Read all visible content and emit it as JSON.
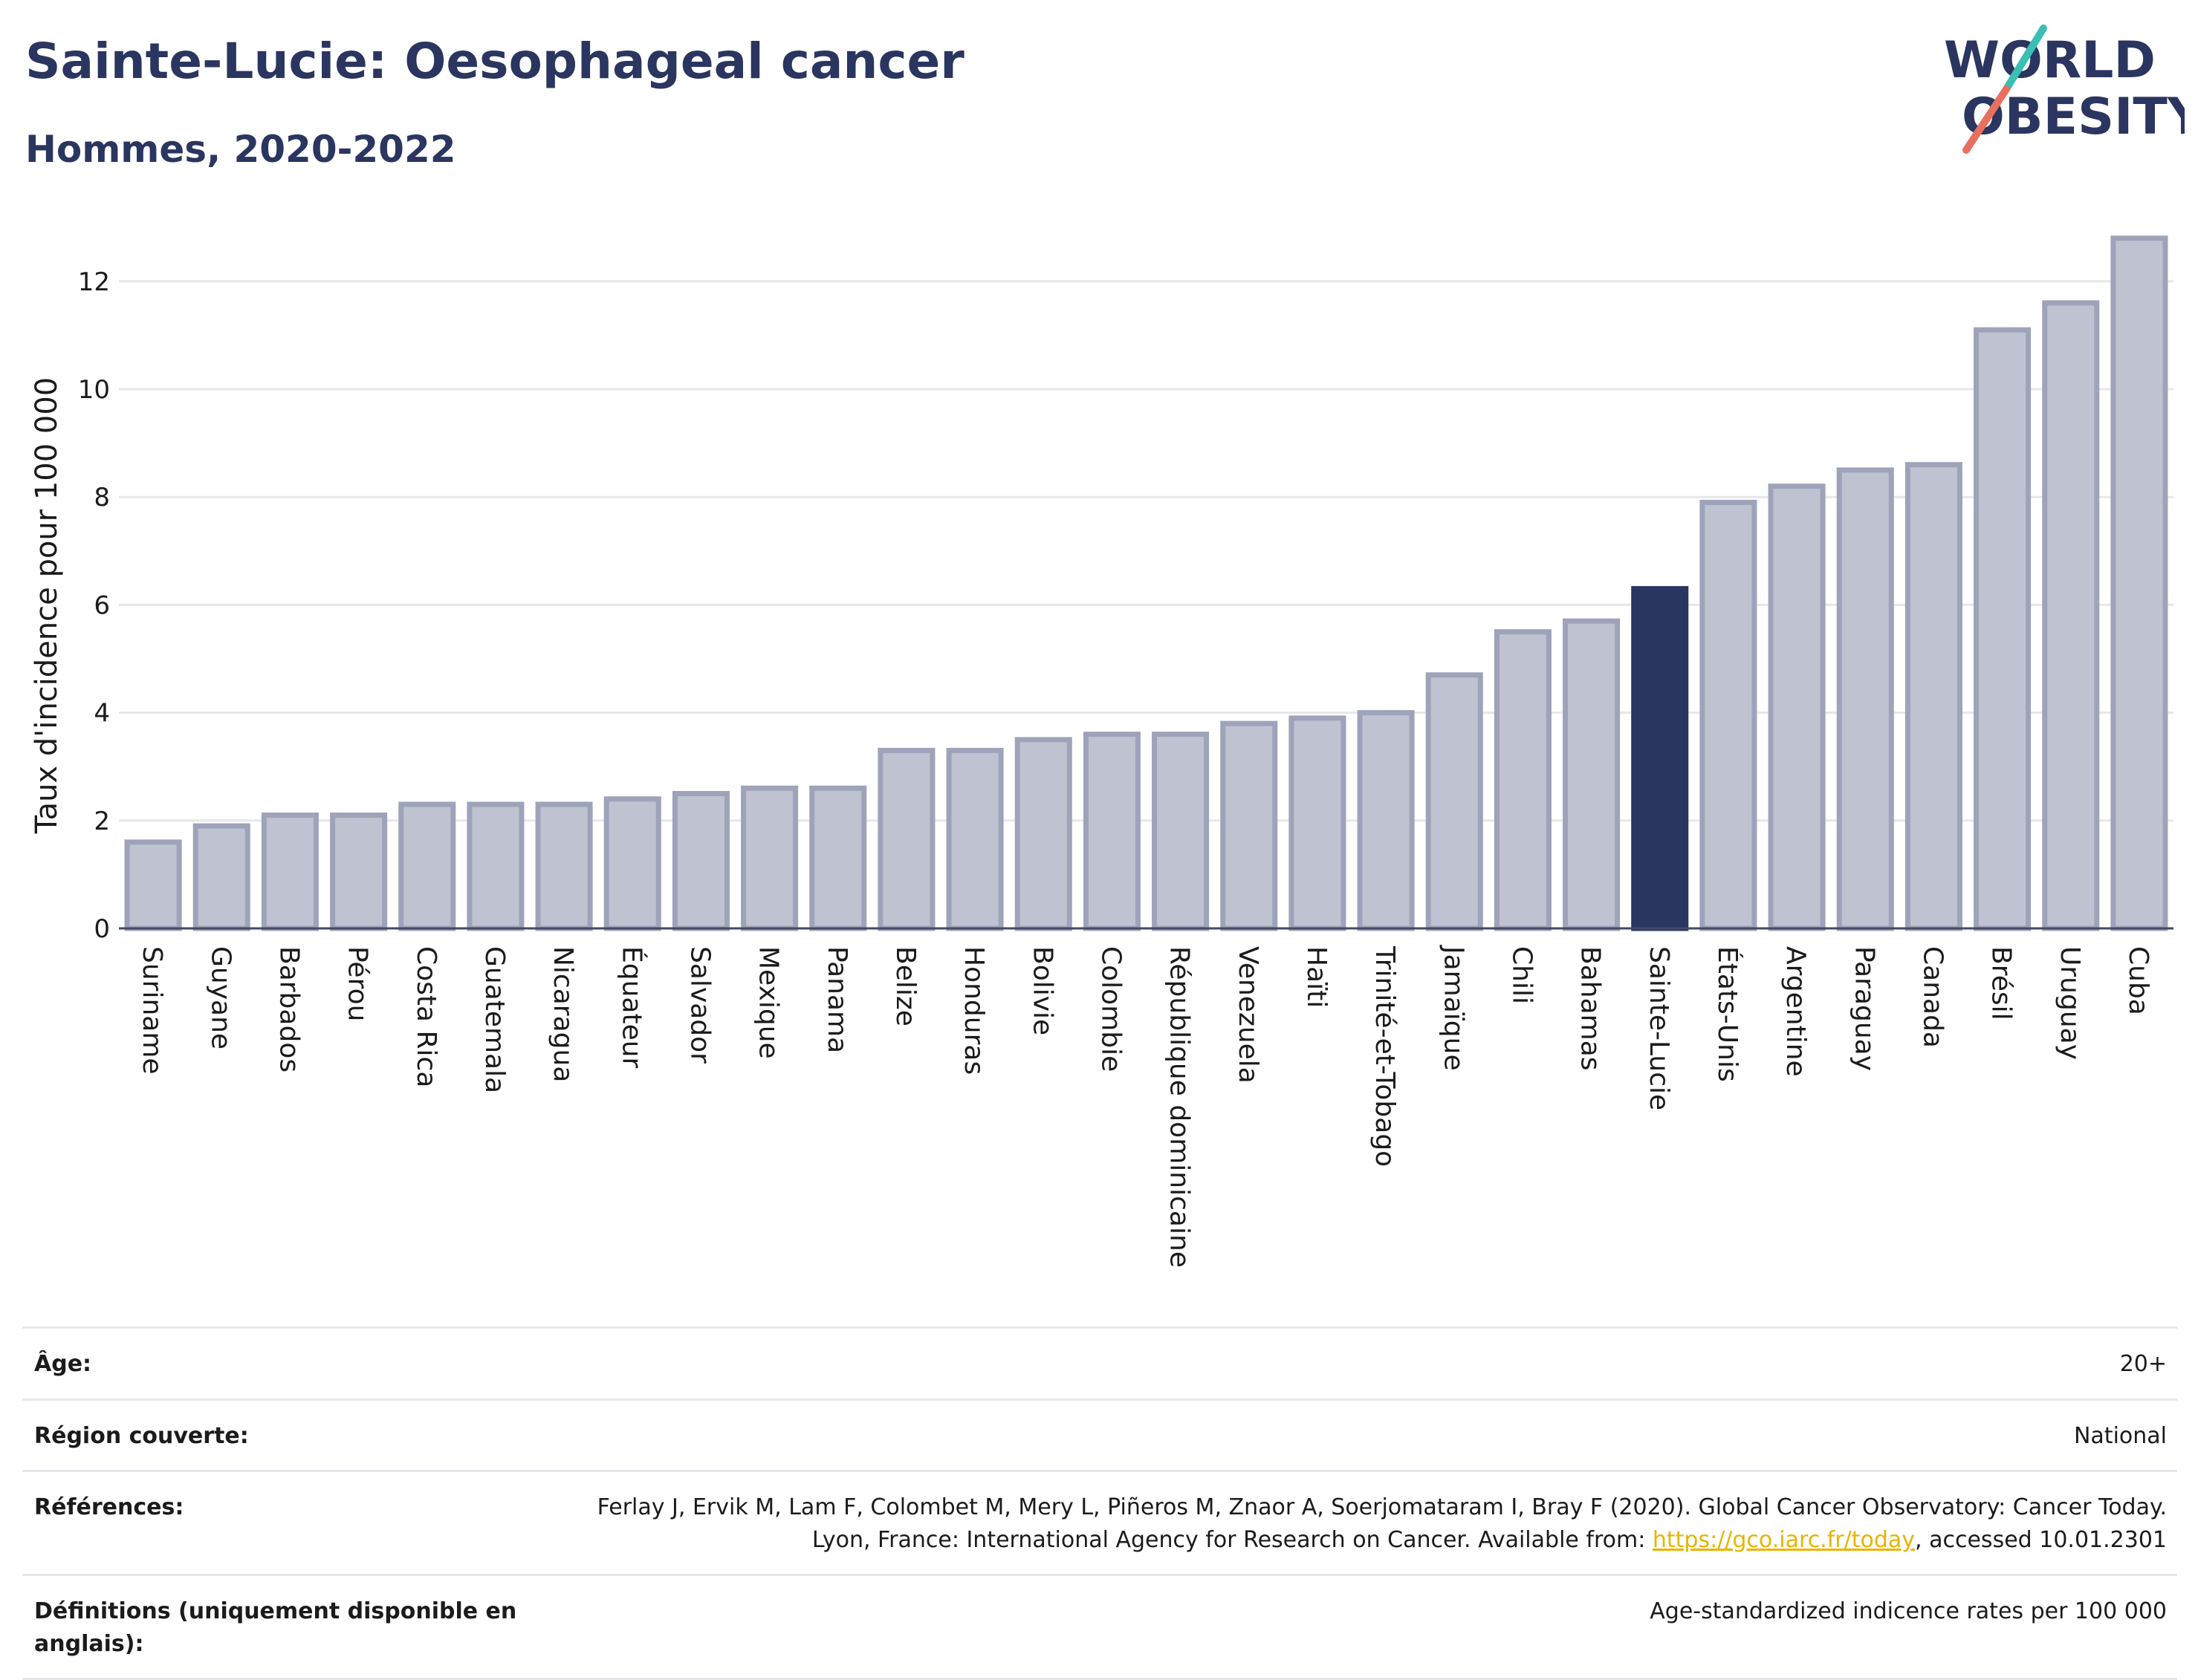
{
  "header": {
    "title": "Sainte-Lucie: Oesophageal cancer",
    "subtitle": "Hommes, 2020-2022"
  },
  "logo": {
    "line1": "WORLD",
    "line2": "OBESITY"
  },
  "chart_data": {
    "type": "bar",
    "title": "Sainte-Lucie: Oesophageal cancer",
    "subtitle": "Hommes, 2020-2022",
    "ylabel": "Taux d'incidence pour 100 000",
    "xlabel": "",
    "ylim": [
      0,
      13
    ],
    "yticks": [
      0,
      2,
      4,
      6,
      8,
      10,
      12
    ],
    "grid": true,
    "highlight": "Sainte-Lucie",
    "colors": {
      "bar": "#bfc2d0",
      "bar_border": "#9ea3ba",
      "highlight": "#2a3560",
      "grid": "#e6e7ec"
    },
    "categories": [
      "Suriname",
      "Guyane",
      "Barbados",
      "Pérou",
      "Costa Rica",
      "Guatemala",
      "Nicaragua",
      "Équateur",
      "Salvador",
      "Mexique",
      "Panama",
      "Belize",
      "Honduras",
      "Bolivie",
      "Colombie",
      "République dominicaine",
      "Venezuela",
      "Haïti",
      "Trinité-et-Tobago",
      "Jamaïque",
      "Chili",
      "Bahamas",
      "Sainte-Lucie",
      "États-Unis",
      "Argentine",
      "Paraguay",
      "Canada",
      "Brésil",
      "Uruguay",
      "Cuba"
    ],
    "values": [
      1.6,
      1.9,
      2.1,
      2.1,
      2.3,
      2.3,
      2.3,
      2.4,
      2.5,
      2.6,
      2.6,
      3.3,
      3.3,
      3.5,
      3.6,
      3.6,
      3.8,
      3.9,
      4.0,
      4.7,
      5.5,
      5.7,
      6.3,
      7.9,
      8.2,
      8.5,
      8.6,
      11.1,
      11.6,
      12.8
    ]
  },
  "footer": {
    "age_label": "Âge:",
    "age_value": "20+",
    "region_label": "Région couverte:",
    "region_value": "National",
    "references_label": "Références:",
    "references_text_1": "Ferlay J, Ervik M, Lam F, Colombet M, Mery L, Piñeros M, Znaor A, Soerjomataram I, Bray F (2020). Global Cancer Observatory: Cancer Today. Lyon, France: International Agency for Research on Cancer. Available from: ",
    "references_link": "https://gco.iarc.fr/today",
    "references_text_2": ", accessed 10.01.2301",
    "definitions_label": "Définitions (uniquement disponible en anglais):",
    "definitions_value": "Age-standardized indicence rates per 100 000"
  }
}
